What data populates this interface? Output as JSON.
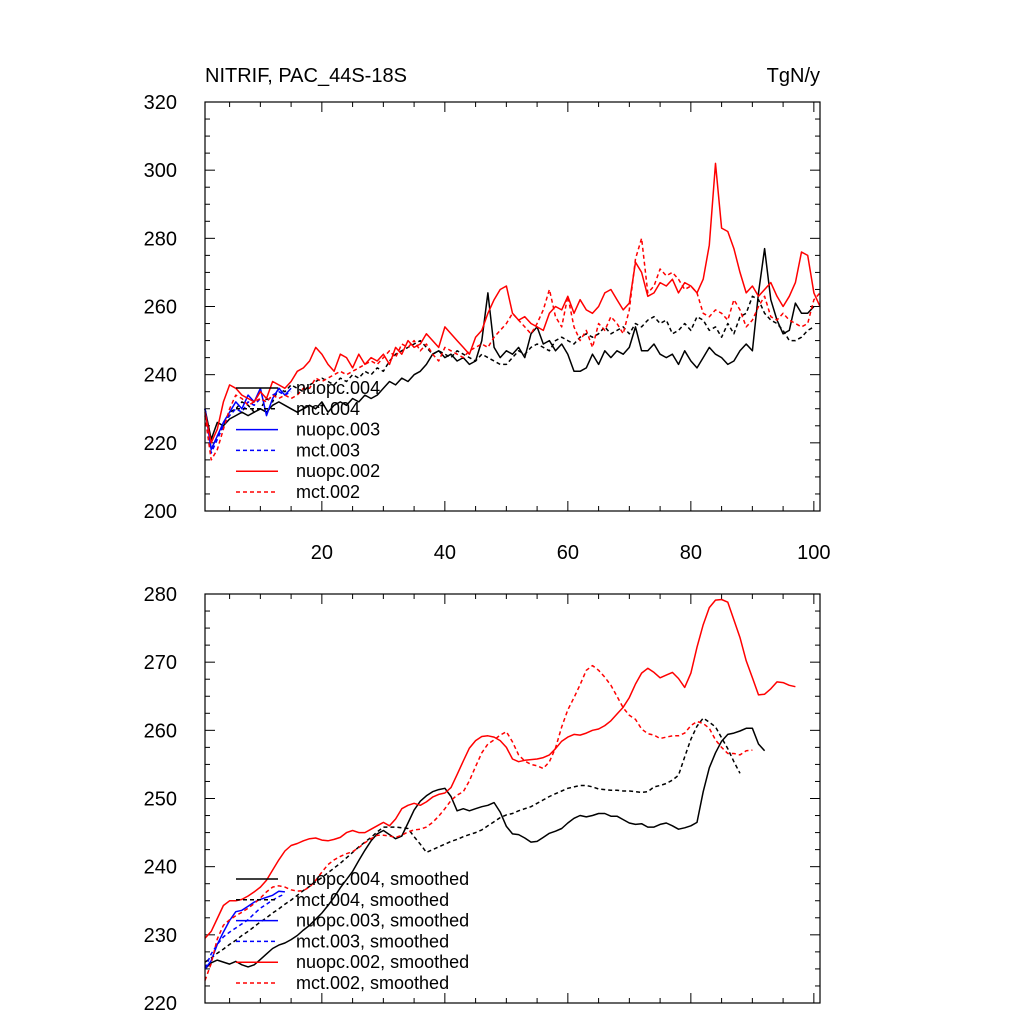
{
  "chart_data": [
    {
      "type": "line",
      "title_left": "NITRIF, PAC_44S-18S",
      "title_right": "TgN/y",
      "xlim": [
        1,
        101
      ],
      "ylim": [
        200,
        320
      ],
      "xticks": [
        20,
        40,
        60,
        80,
        100
      ],
      "yticks": [
        200,
        220,
        240,
        260,
        280,
        300,
        320
      ],
      "show_x_tick_labels": true,
      "series": [
        {
          "name": "nuopc.004",
          "color": "#000000",
          "dash": false,
          "x_start": 1,
          "values": [
            230,
            221,
            226,
            225,
            227,
            228,
            229,
            228,
            229,
            230,
            229,
            231,
            232,
            231,
            230,
            229,
            230,
            231,
            230,
            232,
            229,
            231,
            232,
            231,
            233,
            232,
            234,
            233,
            234,
            236,
            238,
            237,
            239,
            238,
            240,
            241,
            243,
            246,
            247,
            245,
            246,
            244,
            245,
            243,
            244,
            250,
            264,
            248,
            245,
            247,
            246,
            248,
            245,
            252,
            254,
            249,
            250,
            247,
            249,
            246,
            241,
            241,
            242,
            246,
            243,
            247,
            245,
            247,
            246,
            248,
            254,
            247,
            247,
            249,
            246,
            245,
            246,
            243,
            247,
            244,
            242,
            245,
            248,
            246,
            245,
            243,
            244,
            247,
            249,
            247,
            264,
            277,
            262,
            256,
            252,
            253,
            261,
            258,
            258,
            260
          ]
        },
        {
          "name": "mct.004",
          "color": "#000000",
          "dash": true,
          "x_start": 1,
          "values": [
            230,
            218,
            222,
            225,
            229,
            230,
            232,
            231,
            229,
            230,
            233,
            232,
            236,
            235,
            237,
            236,
            235,
            237,
            238,
            239,
            238,
            237,
            239,
            238,
            240,
            239,
            241,
            240,
            242,
            241,
            244,
            246,
            247,
            248,
            249,
            250,
            248,
            246,
            247,
            246,
            245,
            247,
            246,
            245,
            244,
            246,
            245,
            244,
            243,
            243,
            245,
            247,
            246,
            248,
            249,
            248,
            247,
            250,
            251,
            250,
            249,
            251,
            252,
            251,
            252,
            254,
            252,
            253,
            254,
            252,
            255,
            254,
            256,
            257,
            255,
            256,
            252,
            253,
            255,
            253,
            257,
            256,
            253,
            254,
            251,
            255,
            252,
            257,
            258,
            263,
            262,
            258,
            256,
            255,
            253,
            250,
            250,
            251,
            253,
            254
          ]
        },
        {
          "name": "nuopc.003",
          "color": "#0000ff",
          "dash": false,
          "x_start": 1,
          "values": [
            230,
            218,
            222,
            226,
            229,
            232,
            230,
            234,
            232,
            236,
            228,
            233,
            236,
            234,
            236
          ]
        },
        {
          "name": "mct.003",
          "color": "#0000ff",
          "dash": true,
          "x_start": 1,
          "values": [
            230,
            217,
            221,
            225,
            228,
            230,
            229,
            232,
            231,
            233,
            232,
            234,
            235,
            234,
            235
          ]
        },
        {
          "name": "nuopc.002",
          "color": "#ff0000",
          "dash": false,
          "x_start": 1,
          "values": [
            229,
            220,
            224,
            232,
            237,
            236,
            234,
            233,
            232,
            235,
            233,
            238,
            237,
            236,
            238,
            241,
            242,
            244,
            248,
            246,
            243,
            241,
            246,
            245,
            242,
            246,
            243,
            245,
            244,
            246,
            243,
            248,
            246,
            250,
            248,
            249,
            252,
            250,
            248,
            254,
            252,
            250,
            248,
            246,
            251,
            253,
            258,
            262,
            265,
            266,
            258,
            256,
            257,
            255,
            254,
            253,
            258,
            260,
            259,
            263,
            258,
            262,
            259,
            258,
            260,
            264,
            265,
            262,
            259,
            261,
            273,
            270,
            263,
            264,
            267,
            266,
            268,
            264,
            267,
            266,
            264,
            268,
            278,
            302,
            283,
            282,
            277,
            270,
            264,
            266,
            263,
            265,
            267,
            263,
            260,
            263,
            267,
            276,
            275,
            264,
            260
          ]
        },
        {
          "name": "mct.002",
          "color": "#ff0000",
          "dash": true,
          "x_start": 1,
          "values": [
            228,
            215,
            218,
            224,
            230,
            234,
            233,
            231,
            232,
            233,
            232,
            234,
            233,
            234,
            233,
            234,
            236,
            236,
            239,
            238,
            239,
            240,
            241,
            240,
            241,
            242,
            243,
            244,
            243,
            245,
            247,
            245,
            249,
            248,
            250,
            247,
            249,
            246,
            244,
            248,
            247,
            246,
            245,
            247,
            248,
            249,
            248,
            251,
            253,
            255,
            258,
            256,
            254,
            252,
            255,
            259,
            265,
            257,
            254,
            263,
            254,
            250,
            253,
            248,
            255,
            253,
            257,
            255,
            252,
            259,
            274,
            280,
            264,
            266,
            271,
            269,
            270,
            268,
            265,
            266,
            264,
            258,
            257,
            259,
            258,
            256,
            262,
            259,
            254,
            256,
            260,
            263,
            257,
            256,
            258,
            256,
            255,
            254,
            255,
            262,
            264
          ]
        }
      ]
    },
    {
      "type": "line",
      "xlim": [
        1,
        101
      ],
      "ylim": [
        220,
        280
      ],
      "xticks": [
        20,
        40,
        60,
        80,
        100
      ],
      "yticks": [
        220,
        230,
        240,
        250,
        260,
        270,
        280
      ],
      "show_x_tick_labels": false,
      "series": [
        {
          "name": "nuopc.004, smoothed",
          "color": "#000000",
          "dash": false,
          "x_start": 1,
          "values": [
            225.0,
            225.9,
            226.3,
            226.0,
            225.7,
            226.1,
            225.6,
            225.3,
            225.6,
            226.4,
            227.2,
            228.0,
            228.5,
            228.8,
            229.3,
            229.9,
            230.7,
            231.4,
            232.3,
            233.2,
            234.3,
            235.5,
            236.9,
            238.1,
            239.3,
            240.9,
            242.4,
            243.8,
            244.8,
            245.3,
            244.7,
            244.1,
            244.5,
            246.4,
            248.3,
            249.6,
            250.4,
            251.0,
            251.3,
            251.5,
            250.3,
            248.2,
            248.5,
            248.2,
            248.5,
            248.8,
            249.0,
            249.4,
            248.0,
            245.9,
            244.8,
            244.7,
            244.2,
            243.6,
            243.7,
            244.3,
            244.9,
            245.2,
            245.6,
            246.4,
            247.1,
            247.5,
            247.3,
            247.5,
            247.8,
            247.8,
            247.4,
            247.4,
            246.9,
            246.4,
            246.2,
            246.3,
            245.8,
            245.8,
            246.2,
            246.4,
            246.0,
            245.5,
            245.7,
            246.0,
            246.5,
            251.0,
            254.5,
            256.7,
            258.4,
            259.4,
            259.6,
            259.9,
            260.3,
            260.3,
            258.0,
            257.0
          ]
        },
        {
          "name": "mct.004, smoothed",
          "color": "#000000",
          "dash": true,
          "x_start": 1,
          "values": [
            226.0,
            226.6,
            227.3,
            227.9,
            228.6,
            229.2,
            229.9,
            230.5,
            231.2,
            231.9,
            232.5,
            233.2,
            233.8,
            234.5,
            235.1,
            235.8,
            236.5,
            237.1,
            237.8,
            238.4,
            239.1,
            239.8,
            240.5,
            241.3,
            242.1,
            242.9,
            243.6,
            244.3,
            245.1,
            245.8,
            245.8,
            245.8,
            245.7,
            245.6,
            244.4,
            243.3,
            242.1,
            242.5,
            242.9,
            243.3,
            243.7,
            244.0,
            244.4,
            244.7,
            245.0,
            245.4,
            246.0,
            246.6,
            247.2,
            247.6,
            247.8,
            248.2,
            248.5,
            248.8,
            249.3,
            249.8,
            250.3,
            250.7,
            251.1,
            251.5,
            251.7,
            251.9,
            251.9,
            251.7,
            251.4,
            251.3,
            251.2,
            251.2,
            251.1,
            251.1,
            251.0,
            250.9,
            251.0,
            251.7,
            251.9,
            252.2,
            252.7,
            253.4,
            256.1,
            258.7,
            260.6,
            261.8,
            261.2,
            260.5,
            258.9,
            257.3,
            255.4,
            253.7
          ]
        },
        {
          "name": "nuopc.003, smoothed",
          "color": "#0000ff",
          "dash": false,
          "x_start": 1,
          "values": [
            225.0,
            226.2,
            228.6,
            230.4,
            232.1,
            233.4,
            233.6,
            234.2,
            234.8,
            235.2,
            235.5,
            235.8,
            236.4,
            236.3
          ]
        },
        {
          "name": "mct.003, smoothed",
          "color": "#0000ff",
          "dash": true,
          "x_start": 1,
          "values": [
            225.1,
            227.2,
            228.6,
            229.7,
            230.4,
            231.0,
            231.6,
            232.2,
            233.1,
            233.9,
            234.5,
            235.1,
            235.6,
            236.0
          ]
        },
        {
          "name": "nuopc.002, smoothed",
          "color": "#ff0000",
          "dash": false,
          "x_start": 1,
          "values": [
            229.5,
            230.5,
            232.4,
            234.3,
            235.0,
            235.0,
            235.2,
            235.7,
            236.3,
            237.0,
            238.0,
            239.5,
            241.0,
            242.3,
            243.1,
            243.4,
            243.8,
            244.1,
            244.2,
            243.9,
            243.8,
            244.0,
            244.3,
            245.0,
            245.3,
            245.0,
            245.0,
            245.5,
            246.0,
            246.5,
            246.0,
            247.0,
            248.5,
            249.0,
            249.3,
            249.0,
            249.5,
            250.2,
            250.6,
            250.8,
            251.6,
            253.5,
            255.5,
            257.4,
            258.5,
            259.1,
            259.2,
            259.0,
            258.5,
            257.5,
            255.8,
            255.4,
            255.6,
            255.7,
            255.8,
            256.0,
            256.4,
            257.3,
            258.4,
            259.0,
            259.4,
            259.3,
            259.6,
            260.0,
            260.2,
            260.7,
            261.4,
            262.4,
            263.4,
            264.8,
            266.8,
            268.4,
            269.1,
            268.5,
            267.7,
            268.1,
            268.5,
            267.6,
            266.3,
            268.4,
            272.2,
            275.5,
            278.0,
            279.1,
            279.2,
            278.8,
            276.2,
            273.6,
            270.2,
            267.7,
            265.2,
            265.3,
            266.1,
            267.1,
            267.0,
            266.6,
            266.4
          ]
        },
        {
          "name": "mct.002, smoothed",
          "color": "#ff0000",
          "dash": true,
          "x_start": 1,
          "values": [
            223.3,
            225.8,
            229.4,
            231.4,
            232.2,
            232.8,
            233.3,
            233.9,
            234.6,
            235.4,
            236.3,
            237.0,
            237.2,
            237.0,
            236.6,
            236.4,
            236.5,
            237.0,
            238.0,
            239.2,
            240.3,
            241.0,
            241.5,
            241.9,
            242.2,
            242.8,
            243.5,
            244.1,
            244.6,
            244.6,
            244.5,
            244.3,
            244.6,
            245.1,
            245.4,
            245.5,
            245.8,
            246.5,
            247.4,
            248.5,
            249.7,
            250.5,
            251.0,
            252.6,
            254.7,
            256.7,
            258.0,
            258.6,
            259.3,
            259.8,
            258.3,
            256.4,
            255.5,
            255.0,
            254.8,
            254.4,
            255.4,
            257.4,
            260.5,
            263.0,
            264.8,
            266.7,
            268.8,
            269.5,
            268.8,
            267.8,
            266.6,
            265.0,
            263.3,
            262.2,
            261.6,
            260.2,
            259.5,
            259.3,
            258.8,
            259.0,
            259.2,
            259.2,
            259.6,
            260.7,
            261.3,
            261.0,
            260.3,
            258.6,
            257.5,
            256.6,
            256.6,
            256.4,
            257.0,
            257.1
          ]
        }
      ]
    }
  ]
}
